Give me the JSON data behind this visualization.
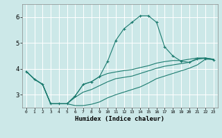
{
  "xlabel": "Humidex (Indice chaleur)",
  "bg_color": "#cce8e8",
  "line_color": "#1a7a6e",
  "grid_color": "#ffffff",
  "xlim": [
    -0.5,
    23.5
  ],
  "ylim": [
    2.5,
    6.5
  ],
  "yticks": [
    3,
    4,
    5,
    6
  ],
  "xticks": [
    0,
    1,
    2,
    3,
    4,
    5,
    6,
    7,
    8,
    9,
    10,
    11,
    12,
    13,
    14,
    15,
    16,
    17,
    18,
    19,
    20,
    21,
    22,
    23
  ],
  "series": [
    {
      "x": [
        0,
        1,
        2,
        3,
        4,
        5,
        6,
        7,
        8,
        9,
        10,
        11,
        12,
        13,
        14,
        15,
        16,
        17,
        18,
        19,
        20,
        21,
        22,
        23
      ],
      "y": [
        3.9,
        3.6,
        3.4,
        2.65,
        2.65,
        2.65,
        2.95,
        3.4,
        3.5,
        3.7,
        4.3,
        5.1,
        5.55,
        5.8,
        6.05,
        6.05,
        5.8,
        4.85,
        4.5,
        4.3,
        4.25,
        4.4,
        4.4,
        4.35
      ],
      "marker": true
    },
    {
      "x": [
        0,
        1,
        2,
        3,
        4,
        5,
        6,
        7,
        8,
        9,
        10,
        11,
        12,
        13,
        14,
        15,
        16,
        17,
        18,
        19,
        20,
        21,
        22,
        23
      ],
      "y": [
        3.9,
        3.6,
        3.4,
        2.65,
        2.65,
        2.65,
        2.95,
        3.4,
        3.5,
        3.7,
        3.82,
        3.88,
        3.93,
        3.97,
        4.05,
        4.12,
        4.22,
        4.28,
        4.32,
        4.32,
        4.37,
        4.42,
        4.42,
        4.37
      ],
      "marker": false
    },
    {
      "x": [
        0,
        1,
        2,
        3,
        4,
        5,
        6,
        7,
        8,
        9,
        10,
        11,
        12,
        13,
        14,
        15,
        16,
        17,
        18,
        19,
        20,
        21,
        22,
        23
      ],
      "y": [
        3.9,
        3.6,
        3.4,
        2.65,
        2.65,
        2.65,
        2.9,
        3.1,
        3.2,
        3.35,
        3.5,
        3.62,
        3.67,
        3.72,
        3.82,
        3.92,
        4.02,
        4.1,
        4.15,
        4.2,
        4.25,
        4.37,
        4.42,
        4.37
      ],
      "marker": false
    },
    {
      "x": [
        0,
        1,
        2,
        3,
        4,
        5,
        6,
        7,
        8,
        9,
        10,
        11,
        12,
        13,
        14,
        15,
        16,
        17,
        18,
        19,
        20,
        21,
        22,
        23
      ],
      "y": [
        3.9,
        3.6,
        3.4,
        2.65,
        2.65,
        2.65,
        2.58,
        2.58,
        2.63,
        2.72,
        2.88,
        3.0,
        3.1,
        3.2,
        3.3,
        3.45,
        3.62,
        3.72,
        3.82,
        3.92,
        4.02,
        4.15,
        4.37,
        4.37
      ],
      "marker": false
    }
  ]
}
